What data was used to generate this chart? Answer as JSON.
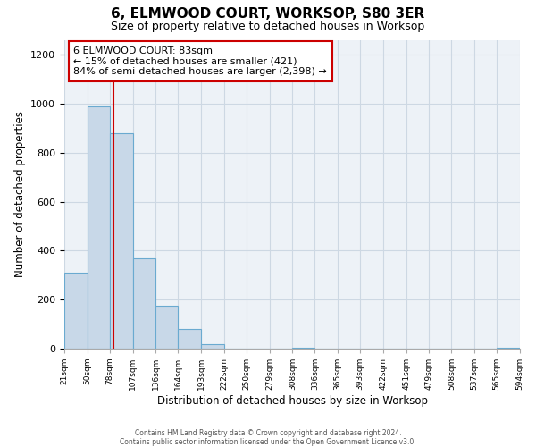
{
  "title": "6, ELMWOOD COURT, WORKSOP, S80 3ER",
  "subtitle": "Size of property relative to detached houses in Worksop",
  "xlabel": "Distribution of detached houses by size in Worksop",
  "ylabel": "Number of detached properties",
  "bin_edges": [
    21,
    50,
    78,
    107,
    136,
    164,
    193,
    222,
    250,
    279,
    308,
    336,
    365,
    393,
    422,
    451,
    479,
    508,
    537,
    565,
    594
  ],
  "bin_counts": [
    310,
    990,
    880,
    370,
    175,
    80,
    20,
    0,
    0,
    0,
    5,
    0,
    0,
    0,
    0,
    0,
    0,
    0,
    0,
    5
  ],
  "bar_color": "#c8d8e8",
  "bar_edge_color": "#6aaad0",
  "property_size": 83,
  "vline_color": "#cc0000",
  "annotation_title": "6 ELMWOOD COURT: 83sqm",
  "annotation_line1": "← 15% of detached houses are smaller (421)",
  "annotation_line2": "84% of semi-detached houses are larger (2,398) →",
  "annotation_box_color": "#cc0000",
  "ylim": [
    0,
    1260
  ],
  "yticks": [
    0,
    200,
    400,
    600,
    800,
    1000,
    1200
  ],
  "tick_labels": [
    "21sqm",
    "50sqm",
    "78sqm",
    "107sqm",
    "136sqm",
    "164sqm",
    "193sqm",
    "222sqm",
    "250sqm",
    "279sqm",
    "308sqm",
    "336sqm",
    "365sqm",
    "393sqm",
    "422sqm",
    "451sqm",
    "479sqm",
    "508sqm",
    "537sqm",
    "565sqm",
    "594sqm"
  ],
  "footer_line1": "Contains HM Land Registry data © Crown copyright and database right 2024.",
  "footer_line2": "Contains public sector information licensed under the Open Government Licence v3.0.",
  "grid_color": "#cdd8e3",
  "background_color": "#edf2f7"
}
